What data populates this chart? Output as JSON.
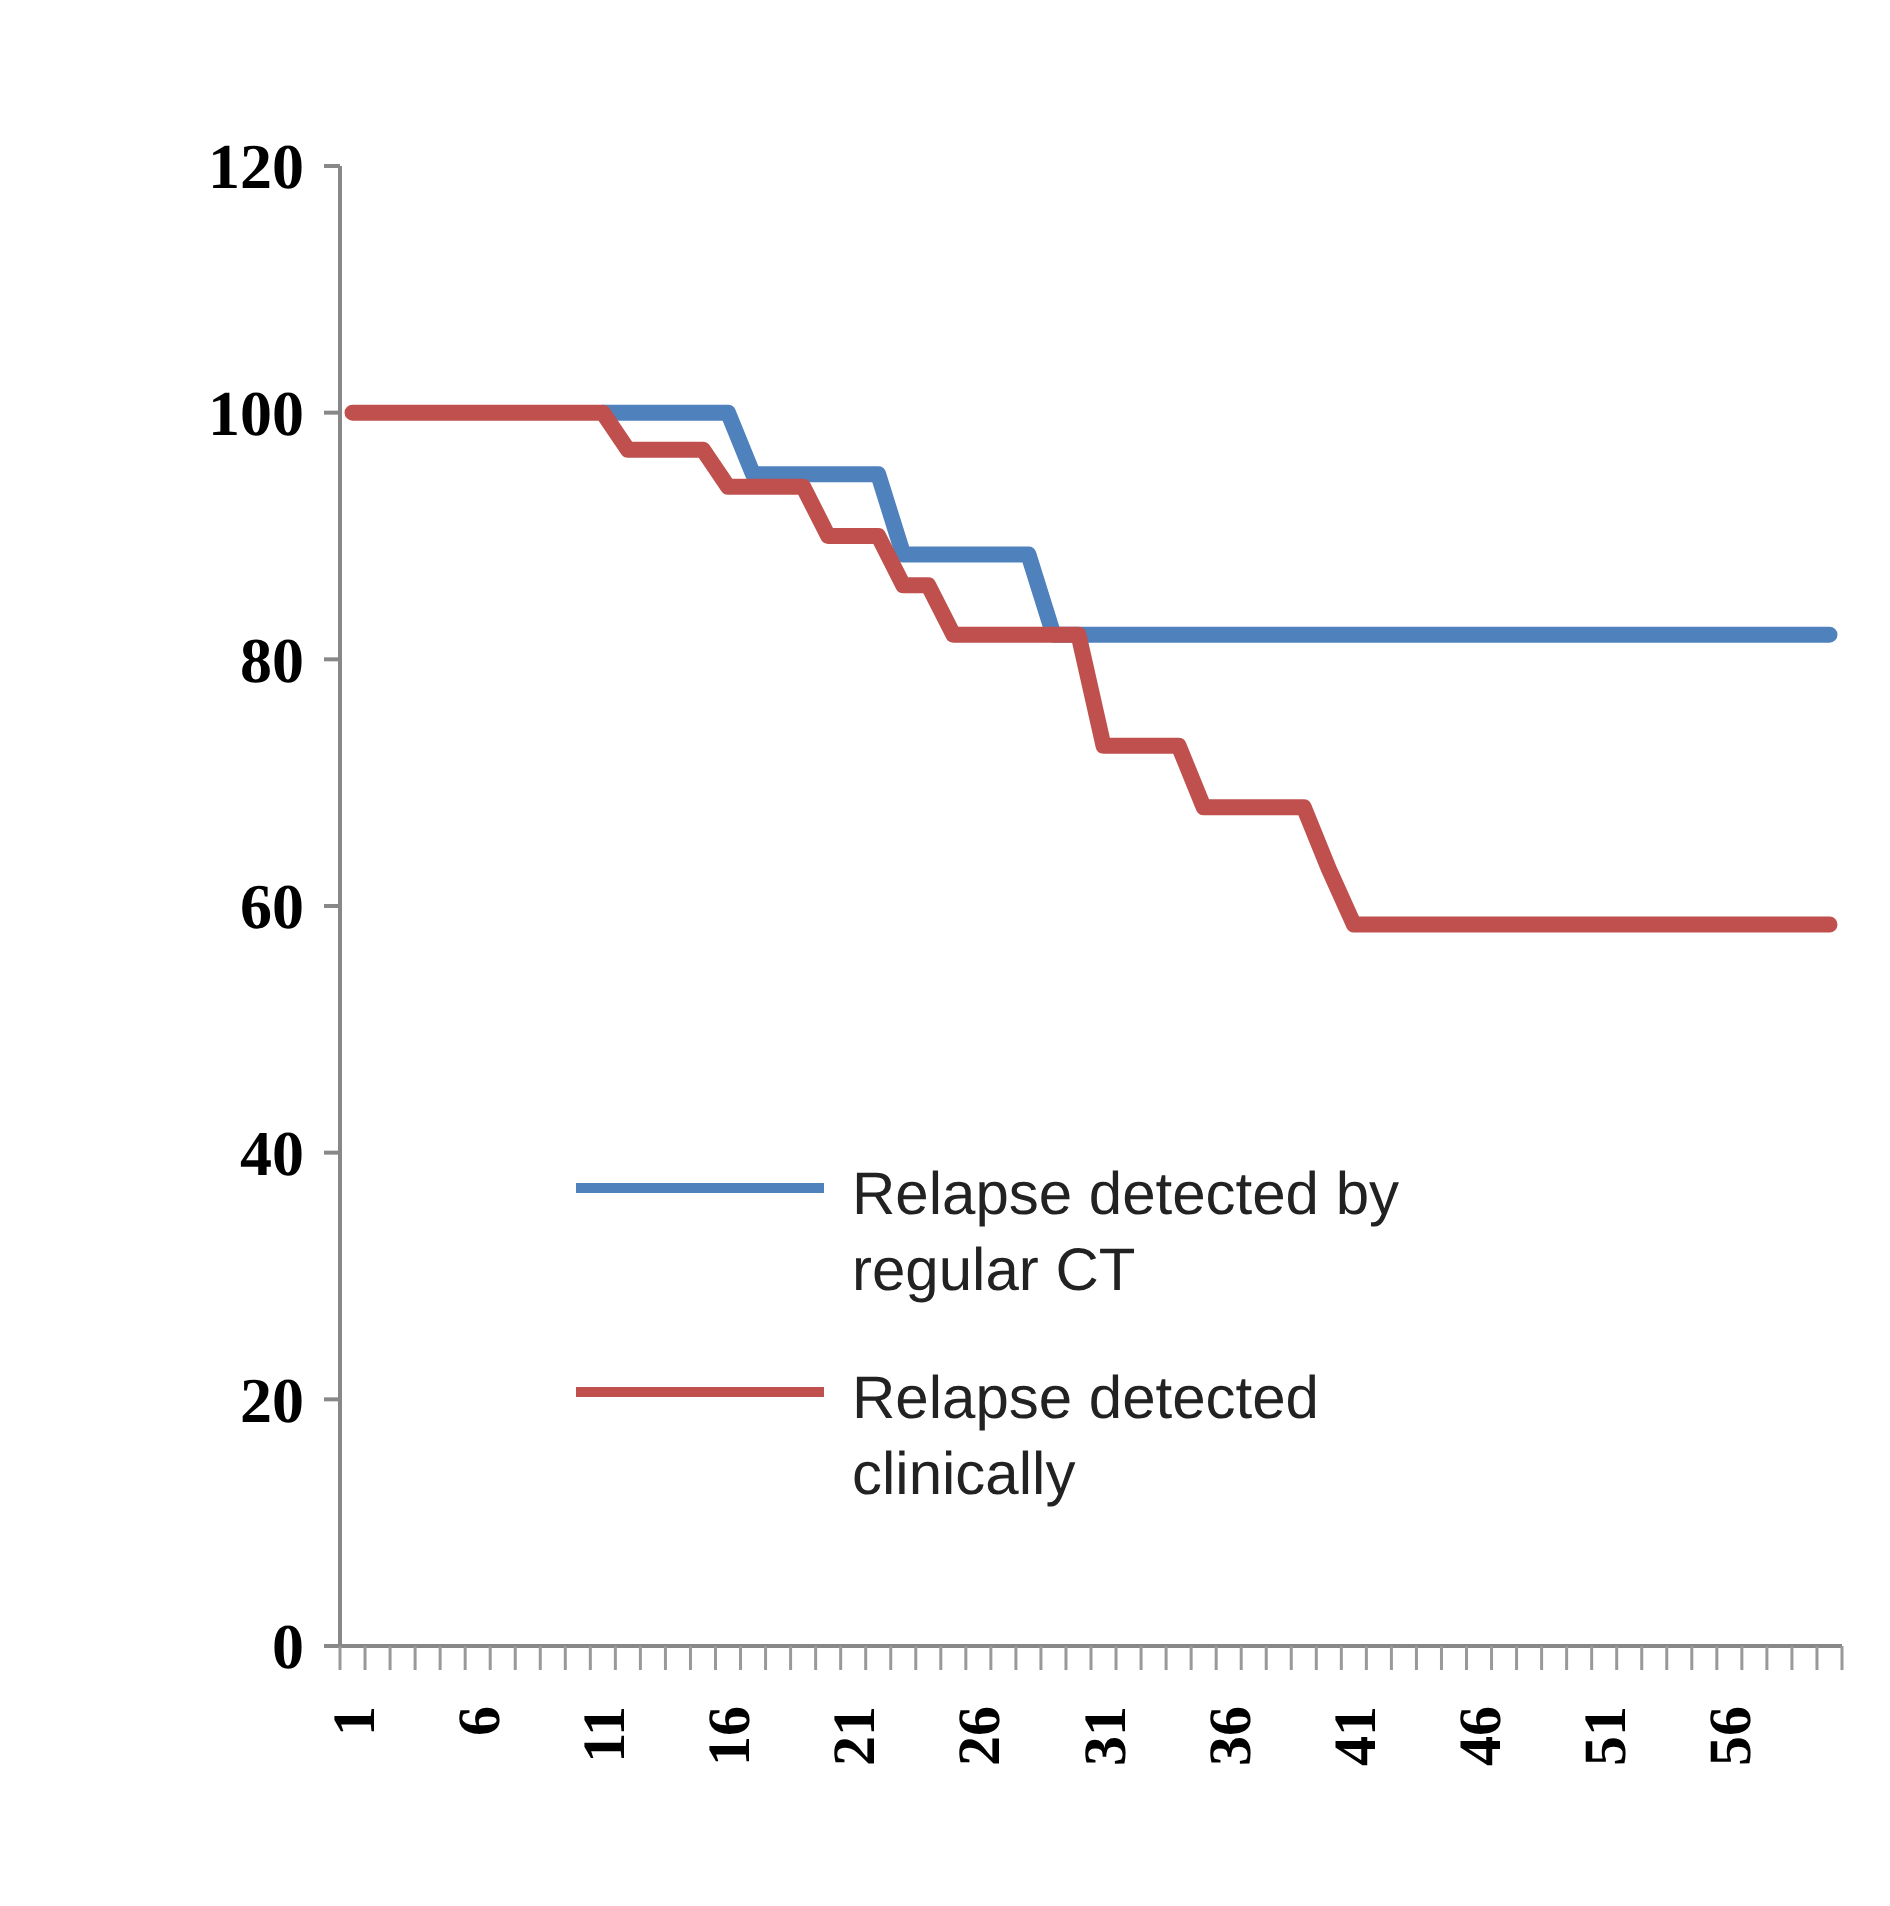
{
  "chart_data": {
    "type": "line",
    "categories": [
      "1",
      null,
      null,
      null,
      null,
      "6",
      null,
      null,
      null,
      null,
      "11",
      null,
      null,
      null,
      null,
      "16",
      null,
      null,
      null,
      null,
      "21",
      null,
      null,
      null,
      null,
      "26",
      null,
      null,
      null,
      null,
      "31",
      null,
      null,
      null,
      null,
      "36",
      null,
      null,
      null,
      null,
      "41",
      null,
      null,
      null,
      null,
      "46",
      null,
      null,
      null,
      null,
      "51",
      null,
      null,
      null,
      null,
      "56",
      null,
      null,
      null,
      null
    ],
    "series": [
      {
        "name": "Relapse detected by regular CT",
        "color": "#4f81bd",
        "values": [
          null,
          null,
          null,
          null,
          null,
          null,
          null,
          null,
          null,
          null,
          100,
          100,
          100,
          100,
          100,
          100,
          95,
          95,
          95,
          95,
          95,
          95,
          88.5,
          88.5,
          88.5,
          88.5,
          88.5,
          88.5,
          82,
          82,
          82,
          82,
          82,
          82,
          82,
          82,
          82,
          82,
          82,
          82,
          82,
          82,
          82,
          82,
          82,
          82,
          82,
          82,
          82,
          82,
          82,
          82,
          82,
          82,
          82,
          82,
          82,
          82,
          82,
          82
        ]
      },
      {
        "name": "Relapse detected clinically",
        "color": "#c0504d",
        "values": [
          100,
          100,
          100,
          100,
          100,
          100,
          100,
          100,
          100,
          100,
          100,
          97,
          97,
          97,
          97,
          94,
          94,
          94,
          94,
          90,
          90,
          90,
          86,
          86,
          82,
          82,
          82,
          82,
          82,
          82,
          73,
          73,
          73,
          73,
          68,
          68,
          68,
          68,
          68,
          63,
          58.5,
          58.5,
          58.5,
          58.5,
          58.5,
          58.5,
          58.5,
          58.5,
          58.5,
          58.5,
          58.5,
          58.5,
          58.5,
          58.5,
          58.5,
          58.5,
          58.5,
          58.5,
          58.5,
          58.5
        ]
      }
    ],
    "ylim": [
      0,
      120
    ],
    "yticks": [
      0,
      20,
      40,
      60,
      80,
      100,
      120
    ],
    "grid": false,
    "legend": "bottom",
    "marker": "none",
    "line_style": "solid"
  }
}
